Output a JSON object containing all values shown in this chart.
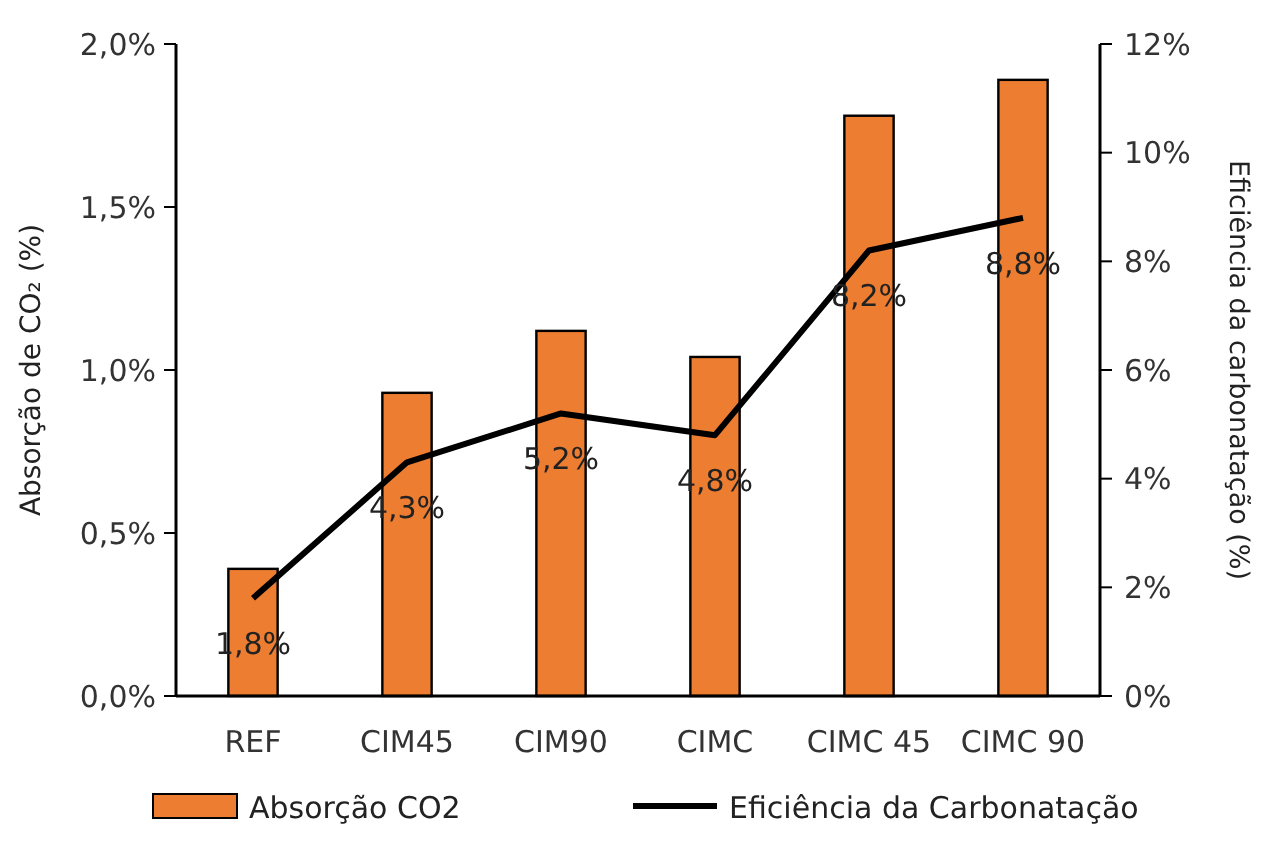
{
  "chart_data": {
    "type": "bar",
    "categories": [
      "REF",
      "CIM45",
      "CIM90",
      "CIMC",
      "CIMC 45",
      "CIMC 90"
    ],
    "ylabel": "Absorção de CO₂ (%)",
    "y2label": "Eficiência da carbonatação (%)",
    "ylim": [
      0,
      2
    ],
    "yticks": [
      {
        "value": 0,
        "label": "0,0%"
      },
      {
        "value": 0.5,
        "label": "0,5%"
      },
      {
        "value": 1,
        "label": "1,0%"
      },
      {
        "value": 1.5,
        "label": "1,5%"
      },
      {
        "value": 2,
        "label": "2,0%"
      }
    ],
    "y2lim": [
      0,
      12
    ],
    "y2ticks": [
      {
        "value": 0,
        "label": "0%"
      },
      {
        "value": 2,
        "label": "2%"
      },
      {
        "value": 4,
        "label": "4%"
      },
      {
        "value": 6,
        "label": "6%"
      },
      {
        "value": 8,
        "label": "8%"
      },
      {
        "value": 10,
        "label": "10%"
      },
      {
        "value": 12,
        "label": "12%"
      }
    ],
    "series": [
      {
        "name": "Absorção CO2",
        "color": "#ed7d31",
        "values": [
          0.39,
          0.93,
          1.12,
          1.04,
          1.78,
          1.89
        ]
      },
      {
        "name": "Eficiência da Carbonatação",
        "type": "line",
        "axis": "y2",
        "color": "#000000",
        "values": [
          1.8,
          4.3,
          5.2,
          4.8,
          8.2,
          8.8
        ],
        "value_labels": [
          "1,8%",
          "4,3%",
          "5,2%",
          "4,8%",
          "8,2%",
          "8,8%"
        ]
      }
    ],
    "grid": false,
    "legend": "bottom",
    "marker": "none",
    "line_style": "solid"
  }
}
